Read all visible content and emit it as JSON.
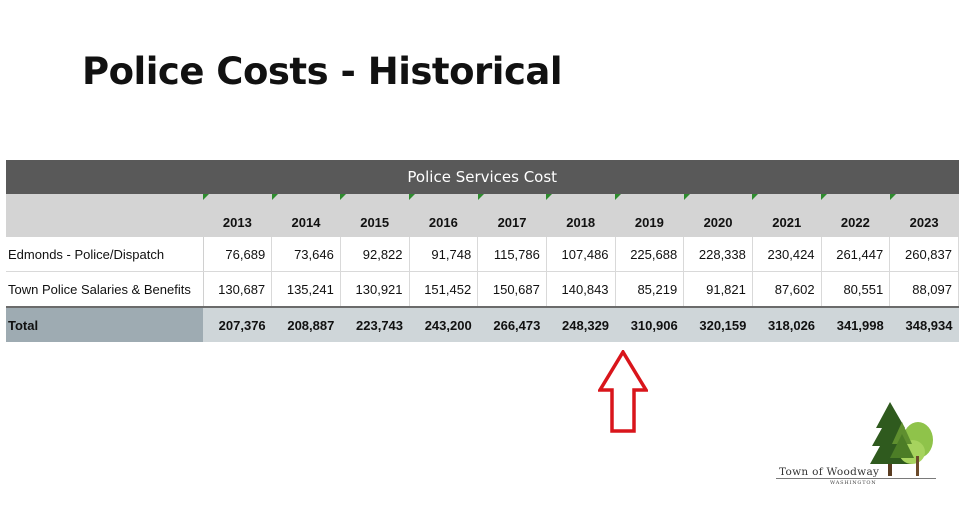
{
  "title": "Police Costs - Historical",
  "table": {
    "caption": "Police Services Cost",
    "years": [
      "2013",
      "2014",
      "2015",
      "2016",
      "2017",
      "2018",
      "2019",
      "2020",
      "2021",
      "2022",
      "2023"
    ],
    "rows": [
      {
        "label": "Edmonds - Police/Dispatch",
        "values": [
          "76,689",
          "73,646",
          "92,822",
          "91,748",
          "115,786",
          "107,486",
          "225,688",
          "228,338",
          "230,424",
          "261,447",
          "260,837"
        ]
      },
      {
        "label": "Town Police Salaries & Benefits",
        "values": [
          "130,687",
          "135,241",
          "130,921",
          "151,452",
          "150,687",
          "140,843",
          "85,219",
          "91,821",
          "87,602",
          "80,551",
          "88,097"
        ]
      }
    ],
    "total": {
      "label": "Total",
      "values": [
        "207,376",
        "208,887",
        "223,743",
        "243,200",
        "266,473",
        "248,329",
        "310,906",
        "320,159",
        "318,026",
        "341,998",
        "348,934"
      ]
    }
  },
  "annotation": {
    "arrow_color": "#d9151b",
    "arrow_direction": "up",
    "points_to_year": "2019"
  },
  "logo": {
    "name": "Town of Woodway",
    "subtitle": "WASHINGTON",
    "icon": "trees-icon"
  },
  "colors": {
    "caption_bg": "#595959",
    "header_bg": "#d4d4d4",
    "total_bg": "#cfd6d9",
    "total_label_bg": "#9eabb2",
    "marker_green": "#2e8b2e"
  }
}
